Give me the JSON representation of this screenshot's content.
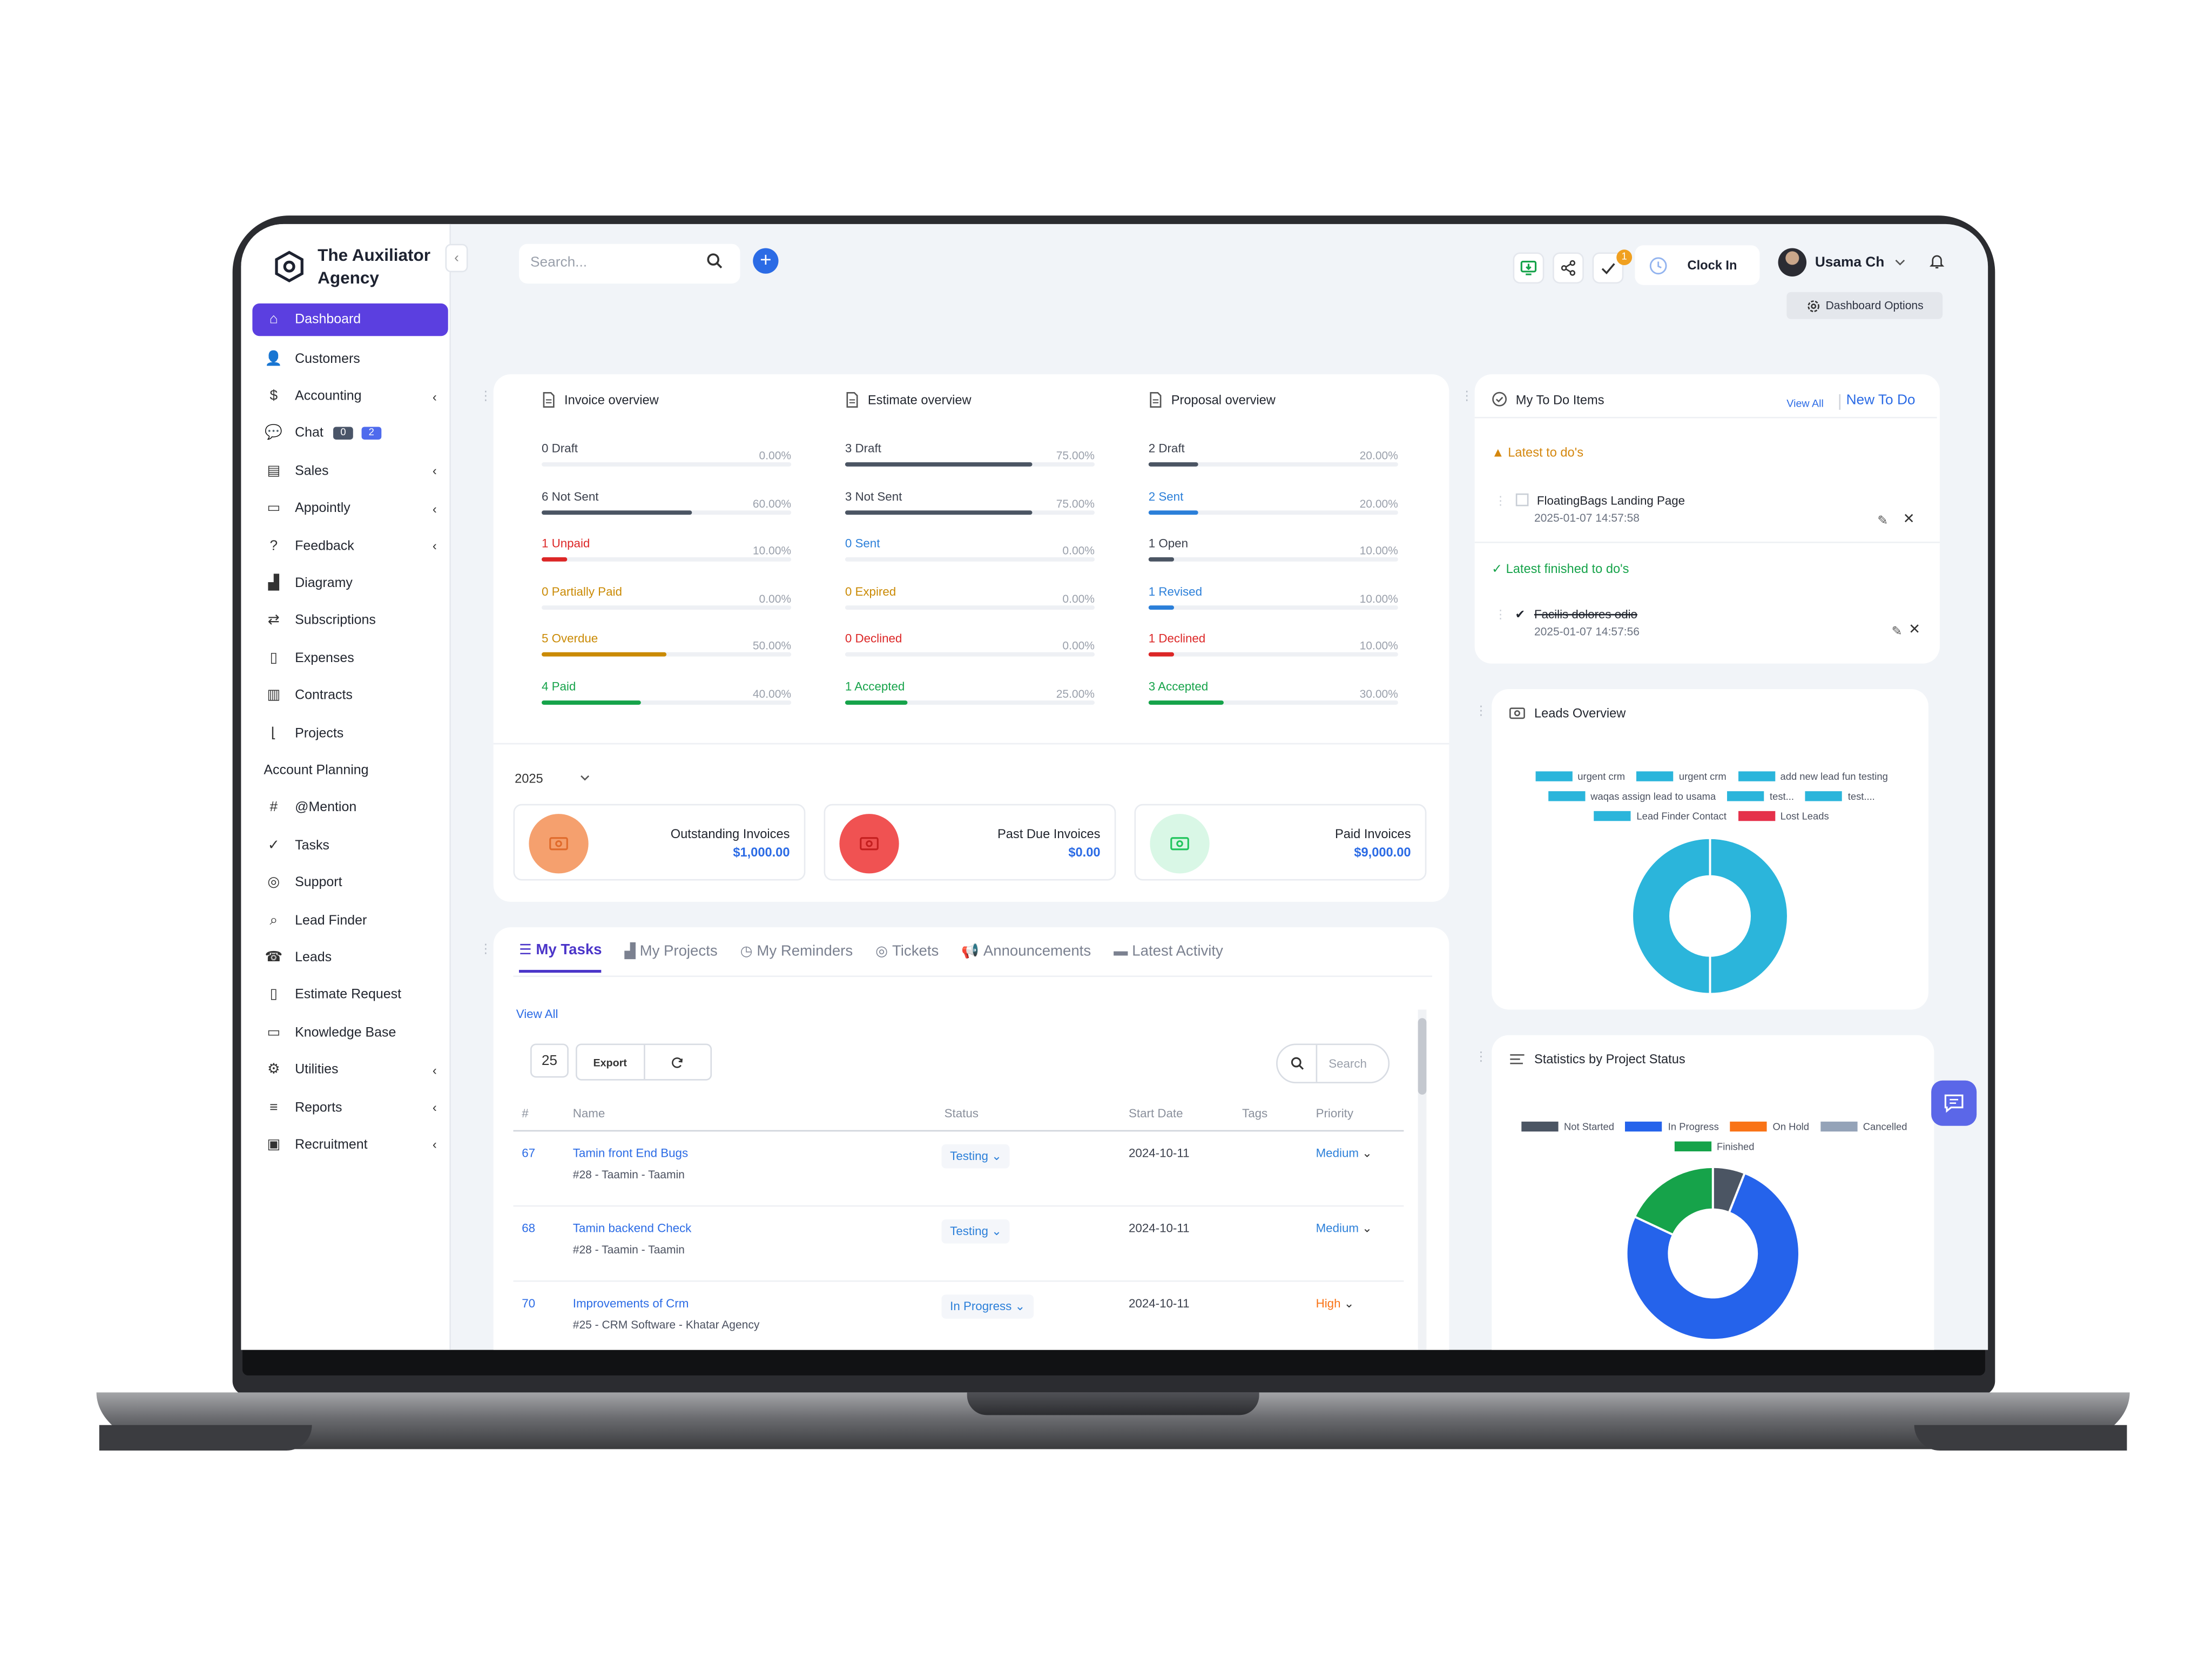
{
  "brand": {
    "name": "The Auxiliator Agency"
  },
  "sidebar": {
    "items": [
      {
        "label": "Dashboard",
        "icon": "home-icon",
        "active": true
      },
      {
        "label": "Customers",
        "icon": "user-icon"
      },
      {
        "label": "Accounting",
        "icon": "dollar-icon",
        "chevron": true
      },
      {
        "label": "Chat",
        "icon": "chat-icon",
        "badges": [
          "0",
          "2"
        ]
      },
      {
        "label": "Sales",
        "icon": "document-icon",
        "chevron": true
      },
      {
        "label": "Appointly",
        "icon": "calendar-icon",
        "chevron": true
      },
      {
        "label": "Feedback",
        "icon": "question-icon",
        "chevron": true
      },
      {
        "label": "Diagramy",
        "icon": "chart-icon"
      },
      {
        "label": "Subscriptions",
        "icon": "repeat-icon"
      },
      {
        "label": "Expenses",
        "icon": "file-icon"
      },
      {
        "label": "Contracts",
        "icon": "contract-icon"
      },
      {
        "label": "Projects",
        "icon": "line-chart-icon"
      },
      {
        "label": "Account Planning",
        "icon": ""
      },
      {
        "label": "@Mention",
        "icon": "hash-icon"
      },
      {
        "label": "Tasks",
        "icon": "check-circle-icon"
      },
      {
        "label": "Support",
        "icon": "lifebuoy-icon"
      },
      {
        "label": "Lead Finder",
        "icon": "magnifier-icon"
      },
      {
        "label": "Leads",
        "icon": "phone-icon"
      },
      {
        "label": "Estimate Request",
        "icon": "file-icon"
      },
      {
        "label": "Knowledge Base",
        "icon": "folder-icon"
      },
      {
        "label": "Utilities",
        "icon": "gears-icon",
        "chevron": true
      },
      {
        "label": "Reports",
        "icon": "bar-chart-icon",
        "chevron": true
      },
      {
        "label": "Recruitment",
        "icon": "id-card-icon",
        "chevron": true
      }
    ]
  },
  "topbar": {
    "search_placeholder": "Search...",
    "notification_count": "1",
    "clock_in": "Clock In",
    "user_name": "Usama Ch",
    "dashboard_options": "Dashboard Options"
  },
  "overview": {
    "columns": [
      {
        "title": "Invoice overview",
        "rows": [
          {
            "label": "0 Draft",
            "pct": "0.00%",
            "value": 0,
            "color": "#4b5563"
          },
          {
            "label": "6 Not Sent",
            "pct": "60.00%",
            "value": 60,
            "color": "#4b5563"
          },
          {
            "label": "1 Unpaid",
            "pct": "10.00%",
            "value": 10,
            "color": "#dc2626"
          },
          {
            "label": "0 Partially Paid",
            "pct": "0.00%",
            "value": 0,
            "color": "#ca8a04"
          },
          {
            "label": "5 Overdue",
            "pct": "50.00%",
            "value": 50,
            "color": "#ca8a04"
          },
          {
            "label": "4 Paid",
            "pct": "40.00%",
            "value": 40,
            "color": "#16a34a"
          }
        ]
      },
      {
        "title": "Estimate overview",
        "rows": [
          {
            "label": "3 Draft",
            "pct": "75.00%",
            "value": 75,
            "color": "#4b5563"
          },
          {
            "label": "3 Not Sent",
            "pct": "75.00%",
            "value": 75,
            "color": "#4b5563"
          },
          {
            "label": "0 Sent",
            "pct": "0.00%",
            "value": 0,
            "color": "#2b7fd9"
          },
          {
            "label": "0 Expired",
            "pct": "0.00%",
            "value": 0,
            "color": "#ca8a04"
          },
          {
            "label": "0 Declined",
            "pct": "0.00%",
            "value": 0,
            "color": "#dc2626"
          },
          {
            "label": "1 Accepted",
            "pct": "25.00%",
            "value": 25,
            "color": "#16a34a"
          }
        ]
      },
      {
        "title": "Proposal overview",
        "rows": [
          {
            "label": "2 Draft",
            "pct": "20.00%",
            "value": 20,
            "color": "#4b5563"
          },
          {
            "label": "2 Sent",
            "pct": "20.00%",
            "value": 20,
            "color": "#2b7fd9"
          },
          {
            "label": "1 Open",
            "pct": "10.00%",
            "value": 10,
            "color": "#4b5563"
          },
          {
            "label": "1 Revised",
            "pct": "10.00%",
            "value": 10,
            "color": "#2b7fd9"
          },
          {
            "label": "1 Declined",
            "pct": "10.00%",
            "value": 10,
            "color": "#dc2626"
          },
          {
            "label": "3 Accepted",
            "pct": "30.00%",
            "value": 30,
            "color": "#16a34a"
          }
        ]
      }
    ],
    "year": "2025",
    "summary": [
      {
        "label": "Outstanding Invoices",
        "value": "$1,000.00",
        "bg": "#f5a06e",
        "icon_color": "#e06b2c"
      },
      {
        "label": "Past Due Invoices",
        "value": "$0.00",
        "bg": "#f05252",
        "icon_color": "#c41f1f"
      },
      {
        "label": "Paid Invoices",
        "value": "$9,000.00",
        "bg": "#d9f7e6",
        "icon_color": "#22c55e"
      }
    ]
  },
  "todos": {
    "title": "My To Do Items",
    "view_all": "View All",
    "new_todo": "New To Do",
    "latest_label": "Latest to do's",
    "latest": [
      {
        "text": "FloatingBags Landing Page",
        "date": "2025-01-07 14:57:58"
      }
    ],
    "finished_label": "Latest finished to do's",
    "finished": [
      {
        "text": "Facilis dolores odio",
        "date": "2025-01-07 14:57:56"
      }
    ]
  },
  "leads": {
    "title": "Leads Overview",
    "legend": [
      {
        "name": "urgent crm",
        "color": "#2bb5db"
      },
      {
        "name": "urgent crm",
        "color": "#2bb5db"
      },
      {
        "name": "add new lead fun testing",
        "color": "#2bb5db"
      },
      {
        "name": "waqas assign lead to usama",
        "color": "#2bb5db"
      },
      {
        "name": "test...",
        "color": "#2bb5db"
      },
      {
        "name": "test....",
        "color": "#2bb5db"
      },
      {
        "name": "Lead Finder Contact",
        "color": "#2bb5db"
      },
      {
        "name": "Lost Leads",
        "color": "#e5314b"
      }
    ]
  },
  "project_status": {
    "title": "Statistics by Project Status",
    "legend": [
      {
        "name": "Not Started",
        "color": "#4b5563"
      },
      {
        "name": "In Progress",
        "color": "#2563eb"
      },
      {
        "name": "On Hold",
        "color": "#f97316"
      },
      {
        "name": "Cancelled",
        "color": "#94a3b8"
      },
      {
        "name": "Finished",
        "color": "#16a34a"
      }
    ]
  },
  "chart_data": [
    {
      "type": "pie",
      "title": "Leads Overview",
      "categories": [
        "urgent crm",
        "urgent crm",
        "add new lead fun testing",
        "waqas assign lead to usama",
        "test...",
        "test....",
        "Lead Finder Contact",
        "Lost Leads"
      ],
      "values": [
        0.5,
        0,
        0,
        0,
        0,
        0,
        0.5,
        0
      ],
      "donut": true
    },
    {
      "type": "pie",
      "title": "Statistics by Project Status",
      "categories": [
        "Not Started",
        "In Progress",
        "On Hold",
        "Cancelled",
        "Finished"
      ],
      "values": [
        6,
        76,
        0,
        0,
        18
      ],
      "donut": true
    }
  ],
  "tasks": {
    "tabs": [
      "My Tasks",
      "My Projects",
      "My Reminders",
      "Tickets",
      "Announcements",
      "Latest Activity"
    ],
    "view_all": "View All",
    "page_length": "25",
    "export": "Export",
    "search_placeholder": "Search",
    "columns": [
      "#",
      "Name",
      "Status",
      "Start Date",
      "Tags",
      "Priority"
    ],
    "rows": [
      {
        "id": "67",
        "name": "Tamin front End Bugs",
        "sub": "#28 - Taamin - Taamin",
        "status": "Testing",
        "start": "2024-10-11",
        "priority": "Medium",
        "priority_color": "#2b7fd9"
      },
      {
        "id": "68",
        "name": "Tamin backend Check",
        "sub": "#28 - Taamin - Taamin",
        "status": "Testing",
        "start": "2024-10-11",
        "priority": "Medium",
        "priority_color": "#2b7fd9"
      },
      {
        "id": "70",
        "name": "Improvements of Crm",
        "sub": "#25 - CRM Software - Khatar Agency",
        "status": "In Progress",
        "start": "2024-10-11",
        "priority": "High",
        "priority_color": "#f97316"
      }
    ]
  }
}
